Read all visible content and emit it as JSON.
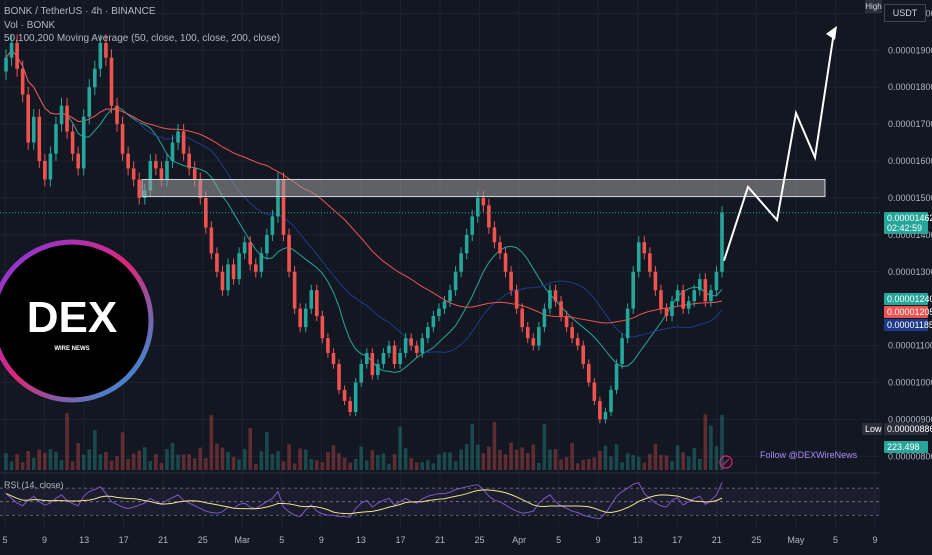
{
  "header": {
    "symbol_line": "BONK / TetherUS · 4h · BINANCE",
    "volume_line": "Vol · BONK",
    "ma_line": "50,100,200 Moving Average (50, close, 100, close, 200, close)"
  },
  "currency": "USDT",
  "high_label": "High",
  "low_label": "Low",
  "follow_text": "Follow @DEXWireNews",
  "logo": {
    "main": "DEX",
    "sub": "WIRE NEWS"
  },
  "colors": {
    "background": "#131722",
    "up": "#26a69a",
    "down": "#ef5350",
    "ma50": "#26a69a",
    "ma100": "#1e3a8a",
    "ma200": "#ef5350",
    "rsi": "#7e57c2",
    "rsi_ma": "#f0e68c",
    "resistance": "#9e9e9e",
    "projection": "#ffffff"
  },
  "chart_data": [
    {
      "type": "candlestick",
      "title": "BONK / TetherUS · 4h · BINANCE",
      "y_axis": {
        "ticks": [
          "0.00002000",
          "0.00001900",
          "0.00001800",
          "0.00001700",
          "0.00001600",
          "0.00001500",
          "0.00001400",
          "0.00001300",
          "0.00001100",
          "0.00001000",
          "0.00000900",
          "0.00000800"
        ],
        "range": [
          7.9e-06,
          2.02e-05
        ]
      },
      "x_axis": {
        "ticks": [
          "5",
          "9",
          "13",
          "17",
          "21",
          "25",
          "Mar",
          "5",
          "9",
          "13",
          "17",
          "21",
          "25",
          "Apr",
          "5",
          "9",
          "13",
          "17",
          "21",
          "25",
          "May",
          "5",
          "9"
        ]
      },
      "price_labels": [
        {
          "text": "0.00001462",
          "sub": "02:42:59",
          "color": "#26a69a"
        },
        {
          "text": "0.00001240",
          "color": "#26a69a"
        },
        {
          "text": "0.00001205",
          "color": "#ef5350"
        },
        {
          "text": "0.00001185",
          "color": "#1e3a8a"
        },
        {
          "text": "0.00000886",
          "color": "#2a2e39",
          "prefix": "Low"
        },
        {
          "text": "223.498",
          "color": "#26a69a"
        }
      ],
      "close_series": [
        1.88,
        1.92,
        1.85,
        1.78,
        1.65,
        1.72,
        1.6,
        1.55,
        1.62,
        1.7,
        1.75,
        1.68,
        1.62,
        1.58,
        1.72,
        1.8,
        1.85,
        1.92,
        1.88,
        1.75,
        1.7,
        1.62,
        1.58,
        1.55,
        1.5,
        1.52,
        1.6,
        1.58,
        1.55,
        1.6,
        1.65,
        1.68,
        1.62,
        1.58,
        1.55,
        1.5,
        1.42,
        1.35,
        1.3,
        1.25,
        1.32,
        1.28,
        1.35,
        1.38,
        1.32,
        1.3,
        1.35,
        1.4,
        1.45,
        1.55,
        1.4,
        1.3,
        1.2,
        1.15,
        1.2,
        1.25,
        1.18,
        1.12,
        1.08,
        1.05,
        0.98,
        0.95,
        0.92,
        1.0,
        1.05,
        1.08,
        1.02,
        1.05,
        1.08,
        1.1,
        1.05,
        1.08,
        1.12,
        1.1,
        1.08,
        1.12,
        1.15,
        1.18,
        1.2,
        1.22,
        1.25,
        1.3,
        1.35,
        1.4,
        1.45,
        1.5,
        1.48,
        1.42,
        1.38,
        1.35,
        1.3,
        1.25,
        1.2,
        1.15,
        1.12,
        1.1,
        1.15,
        1.2,
        1.25,
        1.22,
        1.18,
        1.15,
        1.12,
        1.1,
        1.05,
        1.0,
        0.95,
        0.9,
        0.92,
        0.98,
        1.05,
        1.12,
        1.2,
        1.3,
        1.38,
        1.35,
        1.3,
        1.25,
        1.2,
        1.18,
        1.22,
        1.25,
        1.2,
        1.22,
        1.25,
        1.28,
        1.22,
        1.25,
        1.3,
        1.46
      ],
      "resistance_zone": {
        "low": 1.52e-05,
        "high": 1.55e-05
      },
      "projection_path": [
        [
          1.33e-05,
          "Apr 23"
        ],
        [
          1.53e-05,
          "Apr 27"
        ],
        [
          1.44e-05,
          "Apr 29"
        ],
        [
          1.73e-05,
          "May 1"
        ],
        [
          1.61e-05,
          "May 3"
        ],
        [
          1.95e-05,
          "May 5"
        ]
      ]
    },
    {
      "type": "line",
      "title": "RSI (14, close)",
      "y_ticks": [
        "78.55",
        "61.11",
        "40.00"
      ],
      "values": [
        62,
        55,
        48,
        44,
        52,
        58,
        50,
        45,
        48,
        55,
        60,
        52,
        47,
        44,
        58,
        65,
        68,
        72,
        62,
        50,
        46,
        42,
        40,
        42,
        45,
        48,
        55,
        50,
        47,
        52,
        56,
        60,
        52,
        48,
        44,
        40,
        36,
        34,
        33,
        35,
        42,
        40,
        46,
        48,
        42,
        40,
        45,
        50,
        55,
        65,
        42,
        35,
        30,
        28,
        38,
        45,
        36,
        32,
        30,
        30,
        28,
        28,
        27,
        40,
        48,
        52,
        42,
        48,
        52,
        55,
        45,
        50,
        55,
        50,
        48,
        54,
        58,
        60,
        62,
        62,
        64,
        68,
        70,
        72,
        74,
        75,
        68,
        58,
        52,
        50,
        45,
        40,
        36,
        33,
        34,
        36,
        48,
        55,
        60,
        50,
        44,
        40,
        36,
        34,
        30,
        28,
        26,
        25,
        33,
        45,
        58,
        65,
        70,
        76,
        78,
        62,
        55,
        48,
        44,
        42,
        52,
        56,
        45,
        50,
        55,
        58,
        46,
        52,
        60,
        78.55
      ]
    }
  ]
}
